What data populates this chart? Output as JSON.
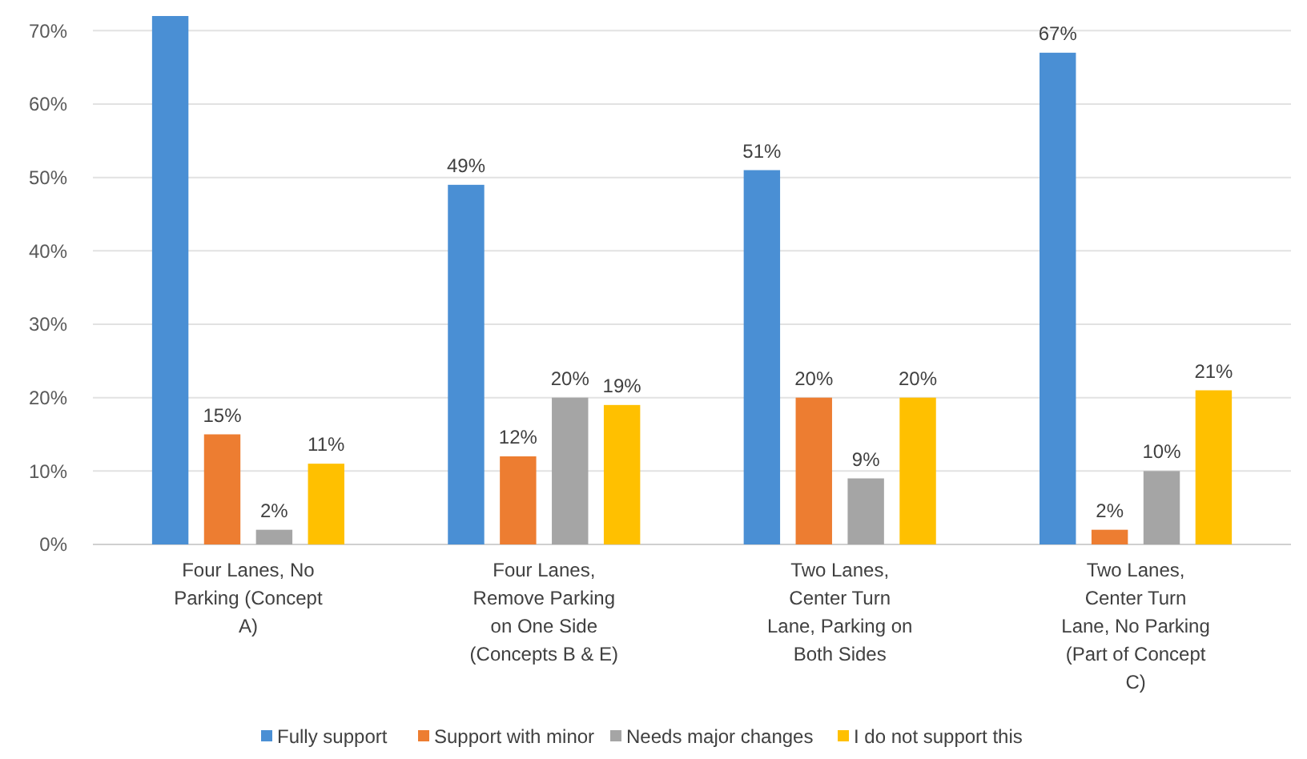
{
  "chart_data": {
    "type": "bar",
    "categories": [
      "Four Lanes, No Parking (Concept A)",
      "Four Lanes, Remove Parking on One Side (Concepts B & E)",
      "Two Lanes, Center Turn Lane, Parking on Both Sides",
      "Two Lanes, Center Turn Lane, No Parking (Part of Concept C)"
    ],
    "series": [
      {
        "name": "Fully support",
        "color": "#4a8fd4",
        "values": [
          72,
          49,
          51,
          67
        ],
        "value_labels": [
          null,
          "49%",
          "51%",
          "67%"
        ]
      },
      {
        "name": "Support with minor",
        "color": "#ed7d31",
        "values": [
          15,
          12,
          20,
          2
        ],
        "value_labels": [
          "15%",
          "12%",
          "20%",
          "2%"
        ]
      },
      {
        "name": "Needs major changes",
        "color": "#a5a5a5",
        "values": [
          2,
          20,
          9,
          10
        ],
        "value_labels": [
          "2%",
          "20%",
          "9%",
          "10%"
        ]
      },
      {
        "name": "I do not support this",
        "color": "#ffc000",
        "values": [
          11,
          19,
          20,
          21
        ],
        "value_labels": [
          "11%",
          "19%",
          "20%",
          "21%"
        ]
      }
    ],
    "ylim": [
      0,
      72
    ],
    "yticks": [
      {
        "value": 0,
        "label": "0%"
      },
      {
        "value": 10,
        "label": "10%"
      },
      {
        "value": 20,
        "label": "20%"
      },
      {
        "value": 30,
        "label": "30%"
      },
      {
        "value": 40,
        "label": "40%"
      },
      {
        "value": 50,
        "label": "50%"
      },
      {
        "value": 60,
        "label": "60%"
      },
      {
        "value": 70,
        "label": "70%"
      }
    ],
    "grid": "y",
    "legend": "bottom"
  }
}
